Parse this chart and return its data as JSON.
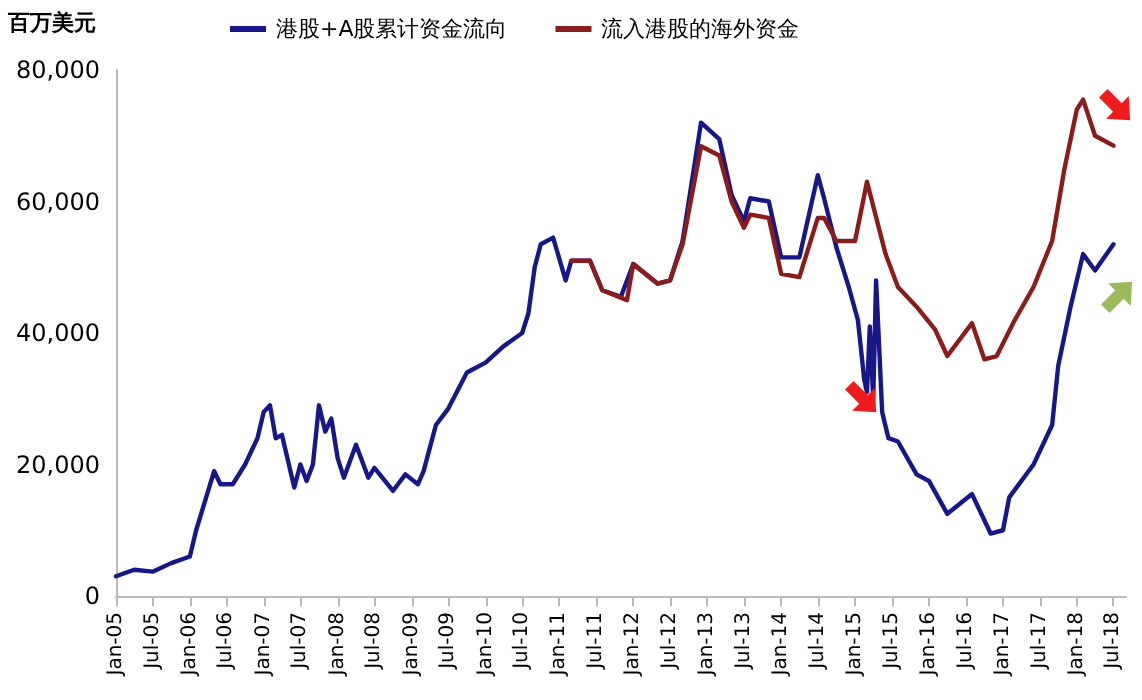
{
  "chart_data": {
    "type": "line",
    "ylabel": "百万美元",
    "legend": "top",
    "grid": false,
    "marker": "none",
    "line_style": "solid",
    "ylim": [
      0,
      80000
    ],
    "yticks": [
      {
        "value": 0,
        "label": "0"
      },
      {
        "value": 20000,
        "label": "20,000"
      },
      {
        "value": 40000,
        "label": "40,000"
      },
      {
        "value": 60000,
        "label": "60,000"
      },
      {
        "value": 80000,
        "label": "80,000"
      }
    ],
    "xlim": [
      "2005-01",
      "2018-09"
    ],
    "xticks": [
      {
        "value": "2005-01",
        "label": "Jan-05"
      },
      {
        "value": "2005-07",
        "label": "Jul-05"
      },
      {
        "value": "2006-01",
        "label": "Jan-06"
      },
      {
        "value": "2006-07",
        "label": "Jul-06"
      },
      {
        "value": "2007-01",
        "label": "Jan-07"
      },
      {
        "value": "2007-07",
        "label": "Jul-07"
      },
      {
        "value": "2008-01",
        "label": "Jan-08"
      },
      {
        "value": "2008-07",
        "label": "Jul-08"
      },
      {
        "value": "2009-01",
        "label": "Jan-09"
      },
      {
        "value": "2009-07",
        "label": "Jul-09"
      },
      {
        "value": "2010-01",
        "label": "Jan-10"
      },
      {
        "value": "2010-07",
        "label": "Jul-10"
      },
      {
        "value": "2011-01",
        "label": "Jan-11"
      },
      {
        "value": "2011-07",
        "label": "Jul-11"
      },
      {
        "value": "2012-01",
        "label": "Jan-12"
      },
      {
        "value": "2012-07",
        "label": "Jul-12"
      },
      {
        "value": "2013-01",
        "label": "Jan-13"
      },
      {
        "value": "2013-07",
        "label": "Jul-13"
      },
      {
        "value": "2014-01",
        "label": "Jan-14"
      },
      {
        "value": "2014-07",
        "label": "Jul-14"
      },
      {
        "value": "2015-01",
        "label": "Jan-15"
      },
      {
        "value": "2015-07",
        "label": "Jul-15"
      },
      {
        "value": "2016-01",
        "label": "Jan-16"
      },
      {
        "value": "2016-07",
        "label": "Jul-16"
      },
      {
        "value": "2017-01",
        "label": "Jan-17"
      },
      {
        "value": "2017-07",
        "label": "Jul-17"
      },
      {
        "value": "2018-01",
        "label": "Jan-18"
      },
      {
        "value": "2018-07",
        "label": "Jul-18"
      }
    ],
    "series": [
      {
        "name": "港股+A股累计资金流向",
        "color": "#17178a",
        "x": [
          "2005-01",
          "2005-04",
          "2005-07",
          "2005-10",
          "2006-01",
          "2006-02",
          "2006-05",
          "2006-06",
          "2006-08",
          "2006-10",
          "2006-12",
          "2007-01",
          "2007-02",
          "2007-03",
          "2007-04",
          "2007-06",
          "2007-07",
          "2007-08",
          "2007-09",
          "2007-10",
          "2007-11",
          "2007-12",
          "2008-01",
          "2008-02",
          "2008-04",
          "2008-06",
          "2008-07",
          "2008-10",
          "2008-12",
          "2009-02",
          "2009-03",
          "2009-05",
          "2009-07",
          "2009-10",
          "2010-01",
          "2010-04",
          "2010-07",
          "2010-08",
          "2010-09",
          "2010-10",
          "2010-12",
          "2011-02",
          "2011-03",
          "2011-06",
          "2011-08",
          "2011-11",
          "2012-01",
          "2012-05",
          "2012-07",
          "2012-09",
          "2012-12",
          "2013-03",
          "2013-05",
          "2013-07",
          "2013-08",
          "2013-11",
          "2014-01",
          "2014-04",
          "2014-07",
          "2014-08",
          "2014-10",
          "2014-12",
          "2015-01-15",
          "2015-02-15",
          "2015-03-01",
          "2015-03-15",
          "2015-04-01",
          "2015-04-15",
          "2015-05-15",
          "2015-06-15",
          "2015-08",
          "2015-11",
          "2016-01",
          "2016-04",
          "2016-08",
          "2016-11",
          "2017-01",
          "2017-02",
          "2017-06",
          "2017-09",
          "2017-10",
          "2017-12",
          "2018-02",
          "2018-04",
          "2018-07"
        ],
        "values": [
          3000,
          4000,
          3700,
          5000,
          6000,
          10000,
          19000,
          17000,
          17000,
          20000,
          24000,
          28000,
          29000,
          24000,
          24500,
          16500,
          20000,
          17500,
          20000,
          29000,
          25000,
          27000,
          21000,
          18000,
          23000,
          18000,
          19500,
          16000,
          18500,
          17000,
          19000,
          26000,
          28500,
          34000,
          35500,
          38000,
          40000,
          43000,
          50000,
          53500,
          54500,
          48000,
          51000,
          51000,
          46500,
          45500,
          50500,
          47500,
          48000,
          54000,
          72000,
          69500,
          61000,
          57000,
          60500,
          60000,
          51500,
          51500,
          64000,
          60500,
          53000,
          47000,
          42000,
          33000,
          31000,
          41000,
          30000,
          48000,
          28000,
          24000,
          23500,
          18500,
          17500,
          12500,
          15500,
          9500,
          10000,
          15000,
          20000,
          26000,
          35000,
          44000,
          52000,
          49500,
          53500
        ]
      },
      {
        "name": "流入港股的海外资金",
        "color": "#8b1c1c",
        "x": [
          "2011-03",
          "2011-06",
          "2011-08",
          "2011-12",
          "2012-01",
          "2012-05",
          "2012-07",
          "2012-09",
          "2012-12",
          "2013-03",
          "2013-05",
          "2013-07",
          "2013-08",
          "2013-11",
          "2014-01",
          "2014-04",
          "2014-07",
          "2014-08",
          "2014-10",
          "2015-01",
          "2015-03",
          "2015-06",
          "2015-08",
          "2015-11",
          "2016-02",
          "2016-04",
          "2016-08",
          "2016-10",
          "2016-12",
          "2017-03",
          "2017-06",
          "2017-09",
          "2017-11",
          "2018-01",
          "2018-02",
          "2018-04",
          "2018-07"
        ],
        "values": [
          51000,
          51000,
          46500,
          45000,
          50500,
          47500,
          48000,
          53500,
          68400,
          67000,
          60000,
          56000,
          58000,
          57500,
          49000,
          48500,
          57500,
          57500,
          54000,
          54000,
          63000,
          52000,
          47000,
          44000,
          40500,
          36500,
          41500,
          36000,
          36500,
          42000,
          47000,
          54000,
          65000,
          74000,
          75500,
          70000,
          68500
        ]
      }
    ]
  }
}
